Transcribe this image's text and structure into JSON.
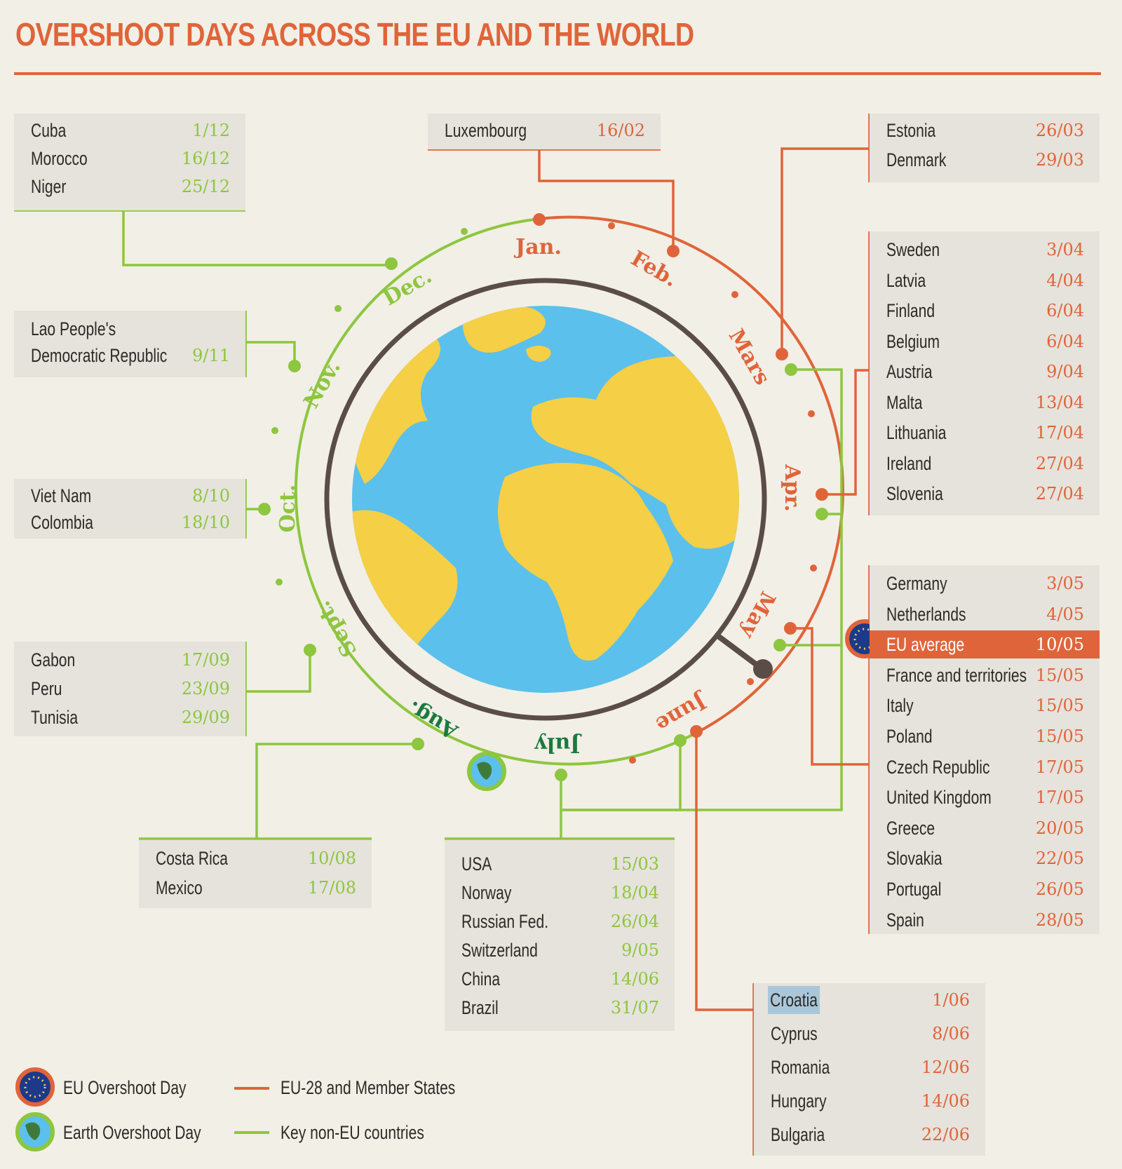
{
  "title": "OVERSHOOT DAYS ACROSS THE EU AND THE WORLD",
  "months": [
    "Jan.",
    "Feb.",
    "Mars",
    "Apr.",
    "May",
    "June",
    "July",
    "Aug.",
    "Sept.",
    "Oct.",
    "Nov.",
    "Dec."
  ],
  "colors": {
    "eu": "#e0643a",
    "world": "#8dc63f",
    "background": "#f2efe6",
    "box": "#e6e3dc"
  },
  "groups": [
    {
      "id": "world-dec",
      "type": "world",
      "rows": [
        {
          "name": "Cuba",
          "date": "1/12"
        },
        {
          "name": "Morocco",
          "date": "16/12"
        },
        {
          "name": "Niger",
          "date": "25/12"
        }
      ]
    },
    {
      "id": "eu-feb",
      "type": "eu",
      "rows": [
        {
          "name": "Luxembourg",
          "date": "16/02"
        }
      ]
    },
    {
      "id": "eu-mar",
      "type": "eu",
      "rows": [
        {
          "name": "Estonia",
          "date": "26/03"
        },
        {
          "name": "Denmark",
          "date": "29/03"
        }
      ]
    },
    {
      "id": "world-nov",
      "type": "world",
      "rows": [
        {
          "name": "Lao People's",
          "date": ""
        },
        {
          "name": "Democratic Republic",
          "date": "9/11"
        }
      ]
    },
    {
      "id": "eu-apr",
      "type": "eu",
      "rows": [
        {
          "name": "Sweden",
          "date": "3/04"
        },
        {
          "name": "Latvia",
          "date": "4/04"
        },
        {
          "name": "Finland",
          "date": "6/04"
        },
        {
          "name": "Belgium",
          "date": "6/04"
        },
        {
          "name": "Austria",
          "date": "9/04"
        },
        {
          "name": "Malta",
          "date": "13/04"
        },
        {
          "name": "Lithuania",
          "date": "17/04"
        },
        {
          "name": "Ireland",
          "date": "27/04"
        },
        {
          "name": "Slovenia",
          "date": "27/04"
        }
      ]
    },
    {
      "id": "world-oct",
      "type": "world",
      "rows": [
        {
          "name": "Viet Nam",
          "date": "8/10"
        },
        {
          "name": "Colombia",
          "date": "18/10"
        }
      ]
    },
    {
      "id": "eu-may",
      "type": "eu",
      "rows": [
        {
          "name": "Germany",
          "date": "3/05"
        },
        {
          "name": "Netherlands",
          "date": "4/05"
        },
        {
          "name": "EU average",
          "date": "10/05",
          "highlight": true
        },
        {
          "name": "France and territories",
          "date": "15/05"
        },
        {
          "name": "Italy",
          "date": "15/05"
        },
        {
          "name": "Poland",
          "date": "15/05"
        },
        {
          "name": "Czech Republic",
          "date": "17/05"
        },
        {
          "name": "United Kingdom",
          "date": "17/05"
        },
        {
          "name": "Greece",
          "date": "20/05"
        },
        {
          "name": "Slovakia",
          "date": "22/05"
        },
        {
          "name": "Portugal",
          "date": "26/05"
        },
        {
          "name": "Spain",
          "date": "28/05"
        }
      ]
    },
    {
      "id": "world-sep",
      "type": "world",
      "rows": [
        {
          "name": "Gabon",
          "date": "17/09"
        },
        {
          "name": "Peru",
          "date": "23/09"
        },
        {
          "name": "Tunisia",
          "date": "29/09"
        }
      ]
    },
    {
      "id": "world-aug",
      "type": "world",
      "rows": [
        {
          "name": "Costa Rica",
          "date": "10/08"
        },
        {
          "name": "Mexico",
          "date": "17/08"
        }
      ]
    },
    {
      "id": "world-key",
      "type": "world",
      "rows": [
        {
          "name": "USA",
          "date": "15/03"
        },
        {
          "name": "Norway",
          "date": "18/04"
        },
        {
          "name": "Russian Fed.",
          "date": "26/04"
        },
        {
          "name": "Switzerland",
          "date": "9/05"
        },
        {
          "name": "China",
          "date": "14/06"
        },
        {
          "name": "Brazil",
          "date": "31/07"
        }
      ]
    },
    {
      "id": "eu-jun",
      "type": "eu",
      "rows": [
        {
          "name": "Croatia",
          "date": "1/06",
          "selected": true
        },
        {
          "name": "Cyprus",
          "date": "8/06"
        },
        {
          "name": "Romania",
          "date": "12/06"
        },
        {
          "name": "Hungary",
          "date": "14/06"
        },
        {
          "name": "Bulgaria",
          "date": "22/06"
        }
      ]
    }
  ],
  "legend": {
    "eu_day": "EU Overshoot Day",
    "earth_day": "Earth Overshoot Day",
    "eu_line": "EU-28 and Member States",
    "world_line": "Key non-EU countries",
    "eu_day_icon": "eu-flag-icon",
    "earth_day_icon": "earth-globe-icon"
  }
}
